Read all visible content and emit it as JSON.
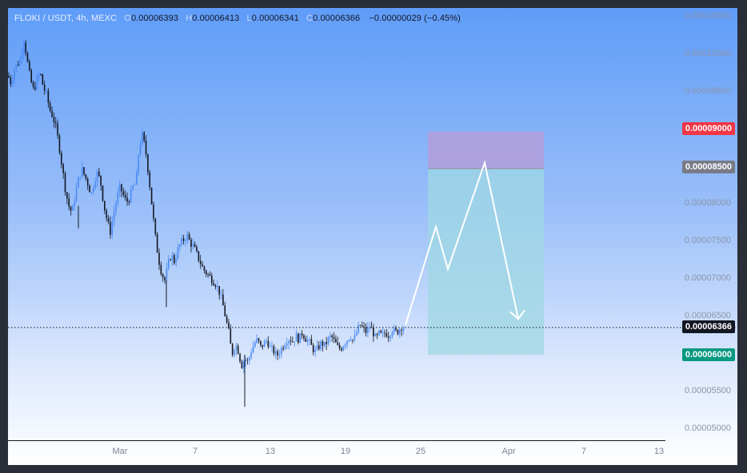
{
  "legend": {
    "symbol": "FLOKI / USDT, 4h, MEXC",
    "open_key": "O",
    "open": "0.00006393",
    "high_key": "H",
    "high": "0.00006413",
    "low_key": "L",
    "low": "0.00006341",
    "close_key": "C",
    "close": "0.00006366",
    "change": "−0.00000029 (−0.45%)"
  },
  "price_axis": [
    "0.00010500",
    "0.00010000",
    "0.00009500",
    "0.00008000",
    "0.00007500",
    "0.00007000",
    "0.00006500",
    "0.00005500",
    "0.00005000"
  ],
  "badges": {
    "target": "0.00009000",
    "entry": "0.00008500",
    "last": "0.00006366",
    "stop": "0.00006000"
  },
  "time_axis": [
    "Mar",
    "7",
    "13",
    "19",
    "25",
    "Apr",
    "7",
    "13"
  ],
  "colors": {
    "up": "#4a8af4",
    "down": "#131722",
    "target_zone": "#b39ddb",
    "profit_zone": "#9fd8e3",
    "badge_target": "#f23645",
    "badge_entry": "#787b86",
    "badge_last": "#131722",
    "badge_stop": "#089981"
  },
  "chart_data": {
    "type": "candlestick",
    "pair": "FLOKI/USDT",
    "interval": "4h",
    "exchange": "MEXC",
    "ylim": [
      4.85e-05,
      0.0001066
    ],
    "last_price": 6.366e-05,
    "close_path": [
      [
        0,
        9.75e-05
      ],
      [
        4,
        9.65e-05
      ],
      [
        8,
        9.85e-05
      ],
      [
        12,
        9.9e-05
      ],
      [
        16,
        0.0001
      ],
      [
        20,
        0.0001025
      ],
      [
        24,
        9.95e-05
      ],
      [
        28,
        9.7e-05
      ],
      [
        32,
        9.55e-05
      ],
      [
        36,
        9.68e-05
      ],
      [
        40,
        9.8e-05
      ],
      [
        44,
        9.6e-05
      ],
      [
        48,
        9.5e-05
      ],
      [
        52,
        9.3e-05
      ],
      [
        56,
        9.2e-05
      ],
      [
        60,
        9.05e-05
      ],
      [
        64,
        8.8e-05
      ],
      [
        68,
        8.5e-05
      ],
      [
        72,
        8.2e-05
      ],
      [
        76,
        8e-05
      ],
      [
        80,
        7.9e-05
      ],
      [
        84,
        8.15e-05
      ],
      [
        88,
        8.35e-05
      ],
      [
        92,
        8.5e-05
      ],
      [
        96,
        8.4e-05
      ],
      [
        100,
        8.3e-05
      ],
      [
        104,
        8.15e-05
      ],
      [
        108,
        8.35e-05
      ],
      [
        112,
        8.45e-05
      ],
      [
        116,
        8.3e-05
      ],
      [
        120,
        8e-05
      ],
      [
        124,
        7.8e-05
      ],
      [
        128,
        7.65e-05
      ],
      [
        132,
        7.9e-05
      ],
      [
        136,
        8.1e-05
      ],
      [
        140,
        8.25e-05
      ],
      [
        144,
        8.15e-05
      ],
      [
        148,
        8.05e-05
      ],
      [
        152,
        8.1e-05
      ],
      [
        156,
        8.25e-05
      ],
      [
        160,
        8.3e-05
      ],
      [
        164,
        8.8e-05
      ],
      [
        168,
        8.95e-05
      ],
      [
        172,
        8.75e-05
      ],
      [
        176,
        8.4e-05
      ],
      [
        180,
        8e-05
      ],
      [
        184,
        7.6e-05
      ],
      [
        188,
        7.3e-05
      ],
      [
        192,
        7.1e-05
      ],
      [
        196,
        7e-05
      ],
      [
        200,
        7.2e-05
      ],
      [
        204,
        7.35e-05
      ],
      [
        208,
        7.25e-05
      ],
      [
        212,
        7.4e-05
      ],
      [
        216,
        7.5e-05
      ],
      [
        220,
        7.55e-05
      ],
      [
        224,
        7.6e-05
      ],
      [
        228,
        7.5e-05
      ],
      [
        232,
        7.45e-05
      ],
      [
        236,
        7.35e-05
      ],
      [
        240,
        7.25e-05
      ],
      [
        244,
        7.15e-05
      ],
      [
        248,
        7.1e-05
      ],
      [
        252,
        7.05e-05
      ],
      [
        256,
        7e-05
      ],
      [
        260,
        6.95e-05
      ],
      [
        264,
        6.85e-05
      ],
      [
        268,
        6.7e-05
      ],
      [
        272,
        6.5e-05
      ],
      [
        276,
        6.3e-05
      ],
      [
        280,
        6e-05
      ],
      [
        284,
        6.15e-05
      ],
      [
        288,
        6.05e-05
      ],
      [
        292,
        5.85e-05
      ],
      [
        296,
        5.95e-05
      ],
      [
        300,
        5.9e-05
      ],
      [
        304,
        6.05e-05
      ],
      [
        308,
        6.15e-05
      ],
      [
        312,
        6.2e-05
      ],
      [
        316,
        6.1e-05
      ],
      [
        320,
        6.15e-05
      ],
      [
        324,
        6.2e-05
      ],
      [
        328,
        6.08e-05
      ],
      [
        332,
        6.05e-05
      ],
      [
        336,
        5.98e-05
      ],
      [
        340,
        6.05e-05
      ],
      [
        344,
        6.12e-05
      ],
      [
        348,
        6.2e-05
      ],
      [
        352,
        6.22e-05
      ],
      [
        356,
        6.18e-05
      ],
      [
        360,
        6.25e-05
      ],
      [
        364,
        6.2e-05
      ],
      [
        368,
        6.3e-05
      ],
      [
        372,
        6.22e-05
      ],
      [
        376,
        6.18e-05
      ],
      [
        380,
        6.1e-05
      ],
      [
        384,
        6.04e-05
      ],
      [
        388,
        6.1e-05
      ],
      [
        392,
        6.16e-05
      ],
      [
        396,
        6.12e-05
      ],
      [
        400,
        6.2e-05
      ],
      [
        404,
        6.25e-05
      ],
      [
        408,
        6.18e-05
      ],
      [
        412,
        6.1e-05
      ],
      [
        416,
        6.08e-05
      ],
      [
        420,
        6.15e-05
      ],
      [
        424,
        6.2e-05
      ],
      [
        428,
        6.26e-05
      ],
      [
        432,
        6.18e-05
      ],
      [
        436,
        6.3e-05
      ],
      [
        440,
        6.4e-05
      ],
      [
        444,
        6.35e-05
      ],
      [
        448,
        6.3e-05
      ],
      [
        452,
        6.38e-05
      ],
      [
        456,
        6.32e-05
      ],
      [
        460,
        6.2e-05
      ],
      [
        464,
        6.28e-05
      ],
      [
        468,
        6.25e-05
      ],
      [
        472,
        6.3e-05
      ],
      [
        476,
        6.26e-05
      ],
      [
        480,
        6.35e-05
      ],
      [
        484,
        6.3e-05
      ],
      [
        488,
        6.32e-05
      ],
      [
        492,
        6.38e-05
      ],
      [
        496,
        6.36e-05
      ]
    ],
    "position": {
      "target": 9e-05,
      "entry": 8.5e-05,
      "stop": 6e-05
    },
    "projection": [
      [
        497,
        6.4e-05
      ],
      [
        535,
        7.72e-05
      ],
      [
        550,
        7.15e-05
      ],
      [
        596,
        8.58e-05
      ],
      [
        638,
        6.48e-05
      ]
    ]
  }
}
